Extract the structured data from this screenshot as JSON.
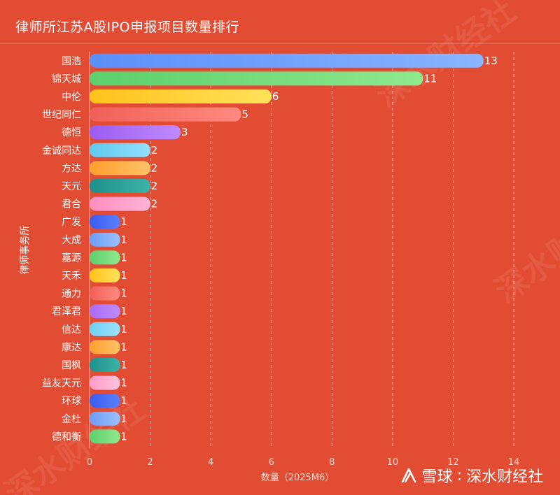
{
  "header": {
    "title": "律师所江苏A股IPO申报项目数量排行"
  },
  "footer": {
    "brand": "雪球",
    "separator": ":",
    "account": "深水财经社"
  },
  "watermark_text": "深水财经社",
  "colors": {
    "background": "#e24c33",
    "text": "#ffffff",
    "grid": "rgba(255,255,255,0.55)"
  },
  "chart_data": {
    "type": "bar",
    "orientation": "horizontal",
    "title": "律师所江苏A股IPO申报项目数量排行",
    "xlabel": "数量（2025M6）",
    "ylabel": "律师事务所",
    "xlim": [
      0,
      14
    ],
    "xticks": [
      0,
      2,
      4,
      6,
      8,
      10,
      12,
      14
    ],
    "grid": "vertical-dashed",
    "categories": [
      "国浩",
      "锦天城",
      "中伦",
      "世纪同仁",
      "德恒",
      "金诚同达",
      "方达",
      "天元",
      "君合",
      "广发",
      "大成",
      "嘉源",
      "天禾",
      "通力",
      "君泽君",
      "信达",
      "康达",
      "国枫",
      "益友天元",
      "环球",
      "金杜",
      "德和衡"
    ],
    "values": [
      13,
      11,
      6,
      5,
      3,
      2,
      2,
      2,
      2,
      1,
      1,
      1,
      1,
      1,
      1,
      1,
      1,
      1,
      1,
      1,
      1,
      1
    ],
    "bar_colors": [
      [
        "#5b8ff9",
        "#8ab4ff"
      ],
      [
        "#5ccf6c",
        "#8fe88f"
      ],
      [
        "#ffc21a",
        "#ffe25a"
      ],
      [
        "#f0605a",
        "#ff8a80"
      ],
      [
        "#9b5cf0",
        "#c08aff"
      ],
      [
        "#5fc8ee",
        "#92e0ff"
      ],
      [
        "#ff9f2e",
        "#ffc266"
      ],
      [
        "#1e8f8a",
        "#3bb3a8"
      ],
      [
        "#ff8cc0",
        "#ffb3d6"
      ],
      [
        "#3a5cf0",
        "#5b7fff"
      ],
      [
        "#6b9cf7",
        "#9cc0ff"
      ],
      [
        "#5ccf6c",
        "#8fe88f"
      ],
      [
        "#ffc21a",
        "#ffe25a"
      ],
      [
        "#f0605a",
        "#ff8a80"
      ],
      [
        "#a86cf0",
        "#c08aff"
      ],
      [
        "#6fd0f0",
        "#9be2ff"
      ],
      [
        "#ff9f2e",
        "#ffc266"
      ],
      [
        "#1e8f8a",
        "#3bb3a8"
      ],
      [
        "#ff9ac8",
        "#ffc2dd"
      ],
      [
        "#3a5cf0",
        "#5b7fff"
      ],
      [
        "#6b9cf7",
        "#9cc0ff"
      ],
      [
        "#5ccf6c",
        "#8fe88f"
      ]
    ]
  }
}
